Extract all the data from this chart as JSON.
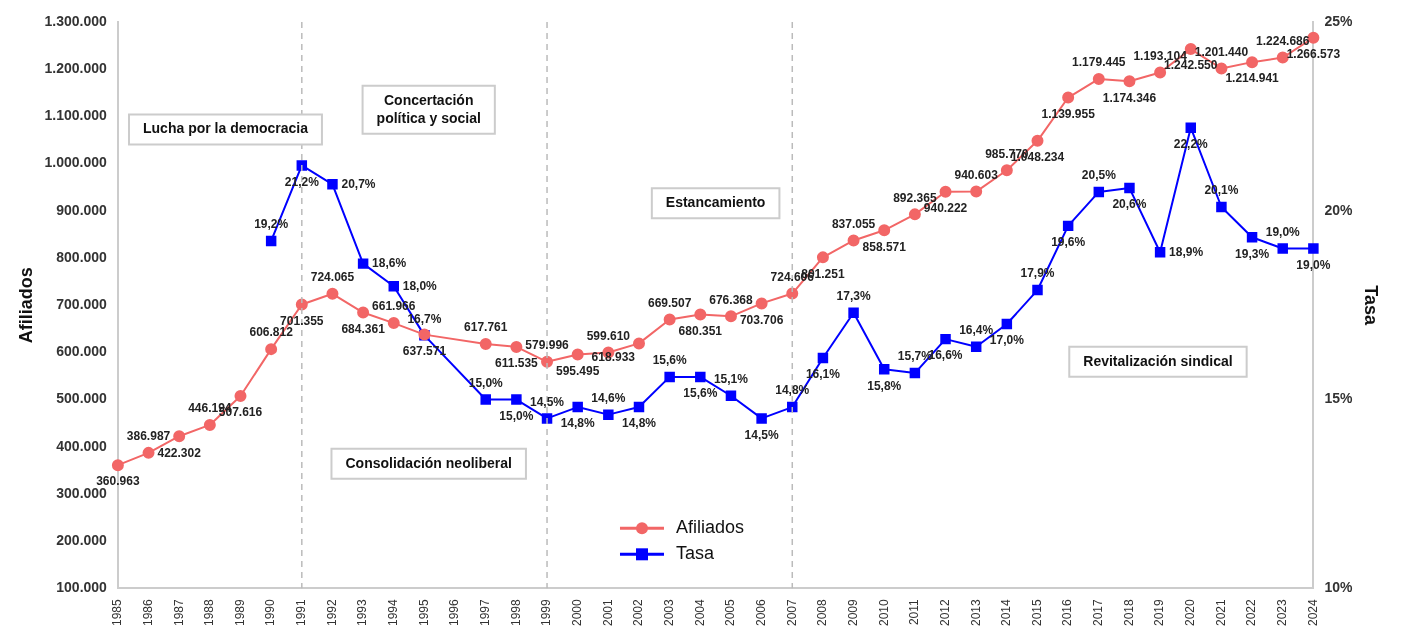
{
  "chart_data": {
    "type": "line",
    "categories": [
      "1985",
      "1986",
      "1987",
      "1988",
      "1989",
      "1990",
      "1991",
      "1992",
      "1993",
      "1994",
      "1995",
      "1996",
      "1997",
      "1998",
      "1999",
      "2000",
      "2001",
      "2002",
      "2003",
      "2004",
      "2005",
      "2006",
      "2007",
      "2008",
      "2009",
      "2010",
      "2011",
      "2012",
      "2013",
      "2014",
      "2015",
      "2016",
      "2017",
      "2018",
      "2019",
      "2020",
      "2021",
      "2022",
      "2023",
      "2024"
    ],
    "series": [
      {
        "name": "Afiliados",
        "color": "#f26666",
        "marker": "circle",
        "values": [
          360963,
          386987,
          422302,
          446194,
          507616,
          606812,
          701355,
          724065,
          684361,
          661966,
          637571,
          null,
          617761,
          611535,
          579996,
          595495,
          599610,
          618933,
          669507,
          680351,
          676368,
          703706,
          724606,
          801251,
          837055,
          858571,
          892365,
          940222,
          940603,
          985770,
          1048234,
          1139955,
          1179445,
          1174346,
          1193104,
          1242550,
          1201440,
          1214941,
          1224686,
          1266573
        ],
        "value_labels": [
          "360.963",
          "386.987",
          "422.302",
          "446.194",
          "507.616",
          "606.812",
          "701.355",
          "724.065",
          "684.361",
          "661.966",
          "637.571",
          null,
          "617.761",
          "611.535",
          "579.996",
          "595.495",
          "599.610",
          "618.933",
          "669.507",
          "680.351",
          "676.368",
          "703.706",
          "724.606",
          "801.251",
          "837.055",
          "858.571",
          "892.365",
          "940.222",
          "940.603",
          "985.770",
          "1.048.234",
          "1.139.955",
          "1.179.445",
          "1.174.346",
          "1.193.104",
          "1.242.550",
          "1.201.440",
          "1.214.941",
          "1.224.686",
          "1.266.573"
        ]
      },
      {
        "name": "Tasa",
        "color": "#0000ff",
        "marker": "square",
        "axis": "y2",
        "values": [
          null,
          null,
          null,
          null,
          null,
          19.2,
          21.2,
          20.7,
          18.6,
          18.0,
          16.7,
          null,
          15.0,
          15.0,
          14.5,
          14.8,
          14.6,
          14.8,
          15.6,
          15.6,
          15.1,
          14.5,
          14.8,
          16.1,
          17.3,
          15.8,
          15.7,
          16.6,
          16.4,
          17.0,
          17.9,
          19.6,
          20.5,
          20.6,
          18.9,
          22.2,
          20.1,
          19.3,
          19.0,
          19.0
        ],
        "value_labels": [
          null,
          null,
          null,
          null,
          null,
          "19,2%",
          "21,2%",
          "20,7%",
          "18,6%",
          "18,0%",
          "16,7%",
          null,
          "15,0%",
          "15,0%",
          "14,5%",
          "14,8%",
          "14,6%",
          "14,8%",
          "15,6%",
          "15,6%",
          "15,1%",
          "14,5%",
          "14,8%",
          "16,1%",
          "17,3%",
          "15,8%",
          "15,7%",
          "16,6%",
          "16,4%",
          "17,0%",
          "17,9%",
          "19,6%",
          "20,5%",
          "20,6%",
          "18,9%",
          "22,2%",
          "20,1%",
          "19,3%",
          "19,0%",
          "19,0%"
        ]
      }
    ],
    "ylabel": "Afiliados",
    "y2label": "Tasa",
    "ylim": [
      100000,
      1300000
    ],
    "yticks": [
      {
        "value": 100000,
        "label": "100.000"
      },
      {
        "value": 200000,
        "label": "200.000"
      },
      {
        "value": 300000,
        "label": "300.000"
      },
      {
        "value": 400000,
        "label": "400.000"
      },
      {
        "value": 500000,
        "label": "500.000"
      },
      {
        "value": 600000,
        "label": "600.000"
      },
      {
        "value": 700000,
        "label": "700.000"
      },
      {
        "value": 800000,
        "label": "800.000"
      },
      {
        "value": 900000,
        "label": "900.000"
      },
      {
        "value": 1000000,
        "label": "1.000.000"
      },
      {
        "value": 1100000,
        "label": "1.100.000"
      },
      {
        "value": 1200000,
        "label": "1.200.000"
      },
      {
        "value": 1300000,
        "label": "1.300.000"
      }
    ],
    "y2lim": [
      10,
      25
    ],
    "y2ticks": [
      {
        "value": 10,
        "label": "10%"
      },
      {
        "value": 15,
        "label": "15%"
      },
      {
        "value": 20,
        "label": "20%"
      },
      {
        "value": 25,
        "label": "25%"
      }
    ],
    "ref_lines": [
      {
        "axis": "x",
        "value": "1991",
        "color": "#bbbbbb",
        "line_style": "dashed"
      },
      {
        "axis": "x",
        "value": "1999",
        "color": "#bbbbbb",
        "line_style": "dashed"
      },
      {
        "axis": "x",
        "value": "2007",
        "color": "#bbbbbb",
        "line_style": "dashed"
      }
    ],
    "annotations": [
      "Lucha por la democracia",
      "Concertación\npolítica y social",
      "Consolidación neoliberal",
      "Estancamiento",
      "Revitalización sindical"
    ],
    "legend": "bottom",
    "grid": false
  }
}
